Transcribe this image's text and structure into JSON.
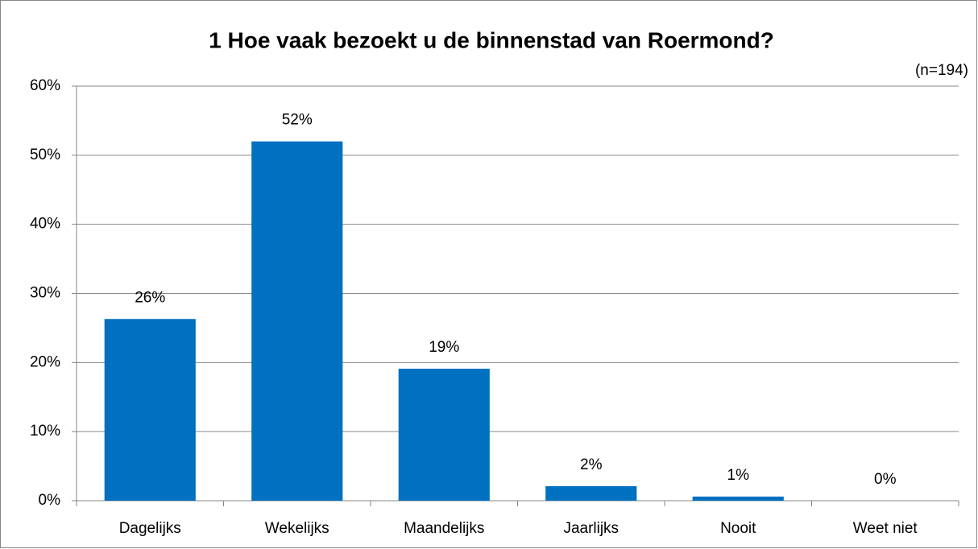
{
  "chart_data": {
    "type": "bar",
    "title": "1 Hoe vaak bezoekt u de binnenstad van Roermond?",
    "subtitle": "(n=194)",
    "categories": [
      "Dagelijks",
      "Wekelijks",
      "Maandelijks",
      "Jaarlijks",
      "Nooit",
      "Weet niet"
    ],
    "values": [
      26.3,
      52,
      19.1,
      2.1,
      0.6,
      0
    ],
    "value_labels": [
      "26%",
      "52%",
      "19%",
      "2%",
      "1%",
      "0%"
    ],
    "color": "#0070c0",
    "ylim": [
      0,
      60
    ],
    "yticks": [
      {
        "value": 0,
        "label": "0%"
      },
      {
        "value": 10,
        "label": "10%"
      },
      {
        "value": 20,
        "label": "20%"
      },
      {
        "value": 30,
        "label": "30%"
      },
      {
        "value": 40,
        "label": "40%"
      },
      {
        "value": 50,
        "label": "50%"
      },
      {
        "value": 60,
        "label": "60%"
      }
    ],
    "grid": true
  }
}
